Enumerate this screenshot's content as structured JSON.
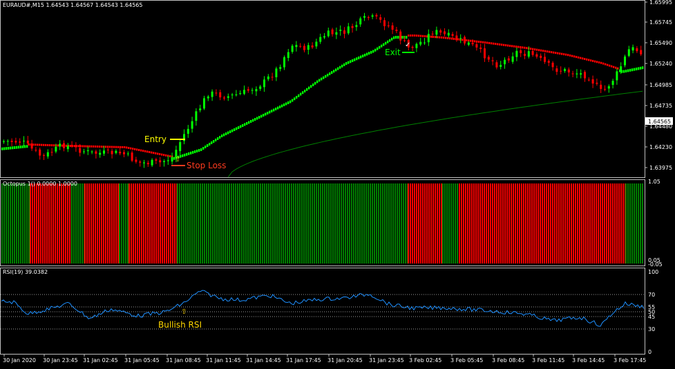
{
  "main_pane": {
    "title": "EURAUD#,M15  1.64543 1.64567 1.64543 1.64565",
    "price_labels": [
      "1.65995",
      "1.65745",
      "1.65490",
      "1.65240",
      "1.64985",
      "1.64735",
      "1.64480",
      "1.64230",
      "1.63975"
    ],
    "current_price": "1.64565",
    "annotations": {
      "entry": "Entry",
      "stop_loss": "Stop Loss",
      "exit": "Exit"
    }
  },
  "octopus_pane": {
    "title": "Octopus 1() 0.0000 1.0000",
    "scale_labels": [
      "1.05",
      "0.05",
      "-0.05"
    ]
  },
  "rsi_pane": {
    "title": "RSI(19) 39.0382",
    "levels": [
      "100",
      "70",
      "55",
      "50",
      "45",
      "30",
      "0"
    ],
    "annotation": "Bullish RSI"
  },
  "time_labels": [
    "30 Jan 2020",
    "30 Jan 23:45",
    "31 Jan 02:45",
    "31 Jan 05:45",
    "31 Jan 08:45",
    "31 Jan 11:45",
    "31 Jan 14:45",
    "31 Jan 17:45",
    "31 Jan 20:45",
    "31 Jan 23:45",
    "3 Feb 02:45",
    "3 Feb 05:45",
    "3 Feb 08:45",
    "3 Feb 11:45",
    "3 Feb 14:45",
    "3 Feb 17:45"
  ],
  "colors": {
    "bull": "#00ff00",
    "bear": "#ff0000",
    "octo_green": "#008000",
    "rsi_line": "#1e90ff",
    "ma_slow": "#008000",
    "frame": "#c0c0c0"
  }
}
